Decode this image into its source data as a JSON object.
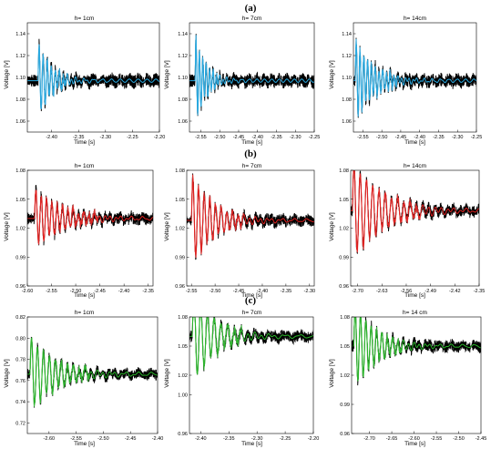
{
  "row_labels": [
    "(a)",
    "(b)",
    "(c)"
  ],
  "chart_data": [
    {
      "type": "line",
      "panel": "a1",
      "title": "h= 1cm",
      "xlabel": "Time [s]",
      "ylabel": "Voltage [V]",
      "xlim": [
        -2.445,
        -2.2
      ],
      "ylim": [
        1.05,
        1.15
      ],
      "xticks": [
        -2.4,
        -2.35,
        -2.3,
        -2.25,
        -2.2
      ],
      "xtick_labels": [
        "-2.40",
        "-2.35",
        "-2.30",
        "-2.25",
        "-2.20"
      ],
      "yticks": [
        1.06,
        1.08,
        1.1,
        1.12,
        1.14
      ],
      "ytick_labels": [
        "1.06",
        "1.08",
        "1.10",
        "1.12",
        "1.14"
      ],
      "series": [
        {
          "role": "raw",
          "color": "#000000"
        },
        {
          "role": "fit",
          "color": "#29a9e0",
          "highlight": "#3bb4ea"
        }
      ],
      "signal": {
        "baseline": 1.097,
        "noise": 0.006,
        "amp": 0.035,
        "t0": -2.425,
        "period": 0.0075,
        "decay": 0.025
      }
    },
    {
      "type": "line",
      "panel": "a2",
      "title": "h= 7cm",
      "xlabel": "Time [s]",
      "ylabel": "Voltage [V]",
      "xlim": [
        -2.58,
        -2.25
      ],
      "ylim": [
        1.05,
        1.15
      ],
      "xticks": [
        -2.55,
        -2.5,
        -2.45,
        -2.4,
        -2.35,
        -2.3,
        -2.25
      ],
      "xtick_labels": [
        "-2.55",
        "-2.50",
        "-2.45",
        "-2.40",
        "-2.35",
        "-2.30",
        "-2.25"
      ],
      "yticks": [
        1.06,
        1.08,
        1.1,
        1.12,
        1.14
      ],
      "ytick_labels": [
        "1.06",
        "1.08",
        "1.10",
        "1.12",
        "1.14"
      ],
      "series": [
        {
          "role": "raw",
          "color": "#000000"
        },
        {
          "role": "fit",
          "color": "#29a9e0",
          "highlight": "#3bb4ea"
        }
      ],
      "signal": {
        "baseline": 1.097,
        "noise": 0.006,
        "amp": 0.04,
        "t0": -2.565,
        "period": 0.009,
        "decay": 0.028
      }
    },
    {
      "type": "line",
      "panel": "a3",
      "title": "h= 14cm",
      "xlabel": "Time [s]",
      "ylabel": "Voltage [V]",
      "xlim": [
        -2.575,
        -2.25
      ],
      "ylim": [
        1.05,
        1.15
      ],
      "xticks": [
        -2.55,
        -2.5,
        -2.45,
        -2.4,
        -2.35,
        -2.3,
        -2.25
      ],
      "xtick_labels": [
        "-2.55",
        "-2.50",
        "-2.45",
        "-2.40",
        "-2.35",
        "-2.30",
        "-2.25"
      ],
      "yticks": [
        1.06,
        1.08,
        1.1,
        1.12,
        1.14
      ],
      "ytick_labels": [
        "1.06",
        "1.08",
        "1.10",
        "1.12",
        "1.14"
      ],
      "series": [
        {
          "role": "raw",
          "color": "#000000"
        },
        {
          "role": "fit",
          "color": "#29a9e0",
          "highlight": "#3bb4ea"
        }
      ],
      "signal": {
        "baseline": 1.097,
        "noise": 0.006,
        "amp": 0.035,
        "t0": -2.57,
        "period": 0.01,
        "decay": 0.05
      }
    },
    {
      "type": "line",
      "panel": "b1",
      "title": "h= 1cm",
      "xlabel": "Time [s]",
      "ylabel": "Voltage [V]",
      "xlim": [
        -2.6,
        -2.34
      ],
      "ylim": [
        0.96,
        1.08
      ],
      "xticks": [
        -2.6,
        -2.55,
        -2.5,
        -2.45,
        -2.4,
        -2.35
      ],
      "xtick_labels": [
        "-2.60",
        "-2.55",
        "-2.50",
        "-2.45",
        "-2.40",
        "-2.35"
      ],
      "yticks": [
        0.96,
        0.99,
        1.02,
        1.05,
        1.08
      ],
      "ytick_labels": [
        "0.96",
        "0.99",
        "1.02",
        "1.05",
        "1.08"
      ],
      "series": [
        {
          "role": "raw",
          "color": "#000000"
        },
        {
          "role": "fit",
          "color": "#e0201f",
          "highlight": "#ee3a39"
        }
      ],
      "signal": {
        "baseline": 1.03,
        "noise": 0.006,
        "amp": 0.03,
        "t0": -2.585,
        "period": 0.011,
        "decay": 0.06
      }
    },
    {
      "type": "line",
      "panel": "b2",
      "title": "h= 7cm",
      "xlabel": "Time [s]",
      "ylabel": "Voltage [V]",
      "xlim": [
        -2.56,
        -2.29
      ],
      "ylim": [
        0.96,
        1.08
      ],
      "xticks": [
        -2.55,
        -2.5,
        -2.45,
        -2.4,
        -2.35,
        -2.3
      ],
      "xtick_labels": [
        "-2.55",
        "-2.50",
        "-2.45",
        "-2.40",
        "-2.35",
        "-2.30"
      ],
      "yticks": [
        0.96,
        0.99,
        1.02,
        1.05,
        1.08
      ],
      "ytick_labels": [
        "0.96",
        "0.99",
        "1.02",
        "1.05",
        "1.08"
      ],
      "series": [
        {
          "role": "raw",
          "color": "#000000"
        },
        {
          "role": "fit",
          "color": "#e0201f",
          "highlight": "#ee3a39"
        }
      ],
      "signal": {
        "baseline": 1.028,
        "noise": 0.006,
        "amp": 0.045,
        "t0": -2.55,
        "period": 0.012,
        "decay": 0.05
      }
    },
    {
      "type": "line",
      "panel": "b3",
      "title": "h= 14cm",
      "xlabel": "Time [s]",
      "ylabel": "Voltage [V]",
      "xlim": [
        -2.72,
        -2.35
      ],
      "ylim": [
        0.96,
        1.08
      ],
      "xticks": [
        -2.7,
        -2.63,
        -2.56,
        -2.49,
        -2.42,
        -2.35
      ],
      "xtick_labels": [
        "-2.70",
        "-2.63",
        "-2.56",
        "-2.49",
        "-2.42",
        "-2.35"
      ],
      "yticks": [
        0.96,
        0.99,
        1.02,
        1.05,
        1.08
      ],
      "ytick_labels": [
        "0.96",
        "0.99",
        "1.02",
        "1.05",
        "1.08"
      ],
      "series": [
        {
          "role": "raw",
          "color": "#000000"
        },
        {
          "role": "fit",
          "color": "#e0201f",
          "highlight": "#ee3a39"
        }
      ],
      "signal": {
        "baseline": 1.038,
        "noise": 0.006,
        "amp": 0.05,
        "t0": -2.715,
        "period": 0.018,
        "decay": 0.09
      }
    },
    {
      "type": "line",
      "panel": "c1",
      "title": "h= 1cm",
      "xlabel": "Time [s]",
      "ylabel": "Voltage [V]",
      "xlim": [
        -2.64,
        -2.4
      ],
      "ylim": [
        0.71,
        0.82
      ],
      "xticks": [
        -2.6,
        -2.55,
        -2.5,
        -2.45,
        -2.4
      ],
      "xtick_labels": [
        "-2.60",
        "-2.55",
        "-2.50",
        "-2.45",
        "-2.40"
      ],
      "yticks": [
        0.72,
        0.74,
        0.76,
        0.78,
        0.8,
        0.82
      ],
      "ytick_labels": [
        "0.72",
        "0.74",
        "0.76",
        "0.78",
        "0.80",
        "0.82"
      ],
      "series": [
        {
          "role": "raw",
          "color": "#000000"
        },
        {
          "role": "fit",
          "color": "#2bb52b",
          "highlight": "#44c844"
        }
      ],
      "signal": {
        "baseline": 0.766,
        "noise": 0.005,
        "amp": 0.035,
        "t0": -2.635,
        "period": 0.011,
        "decay": 0.05
      }
    },
    {
      "type": "line",
      "panel": "c2",
      "title": "h= 7cm",
      "xlabel": "Time [s]",
      "ylabel": "Voltage [V]",
      "xlim": [
        -2.42,
        -2.2
      ],
      "ylim": [
        0.96,
        1.08
      ],
      "xticks": [
        -2.4,
        -2.35,
        -2.3,
        -2.25,
        -2.2
      ],
      "xtick_labels": [
        "-2.40",
        "-2.35",
        "-2.30",
        "-2.25",
        "-2.20"
      ],
      "yticks": [
        0.96,
        1.0,
        1.02,
        1.05,
        1.08
      ],
      "ytick_labels": [
        "0.96",
        "1.00",
        "1.02",
        "1.05",
        "1.08"
      ],
      "series": [
        {
          "role": "raw",
          "color": "#000000"
        },
        {
          "role": "fit",
          "color": "#2bb52b",
          "highlight": "#44c844"
        }
      ],
      "signal": {
        "baseline": 1.06,
        "noise": 0.006,
        "amp": 0.05,
        "t0": -2.415,
        "period": 0.012,
        "decay": 0.04
      }
    },
    {
      "type": "line",
      "panel": "c3",
      "title": "h= 14 cm",
      "xlabel": "Time [s]",
      "ylabel": "Voltage [V]",
      "xlim": [
        -2.74,
        -2.45
      ],
      "ylim": [
        0.96,
        1.08
      ],
      "xticks": [
        -2.7,
        -2.65,
        -2.6,
        -2.55,
        -2.5,
        -2.45
      ],
      "xtick_labels": [
        "-2.70",
        "-2.65",
        "-2.60",
        "-2.55",
        "-2.50",
        "-2.45"
      ],
      "yticks": [
        0.96,
        0.99,
        1.02,
        1.05,
        1.08
      ],
      "ytick_labels": [
        "0.96",
        "0.99",
        "1.02",
        "1.05",
        "1.08"
      ],
      "series": [
        {
          "role": "raw",
          "color": "#000000"
        },
        {
          "role": "fit",
          "color": "#2bb52b",
          "highlight": "#44c844"
        }
      ],
      "signal": {
        "baseline": 1.05,
        "noise": 0.006,
        "amp": 0.045,
        "t0": -2.735,
        "period": 0.012,
        "decay": 0.05
      }
    }
  ]
}
